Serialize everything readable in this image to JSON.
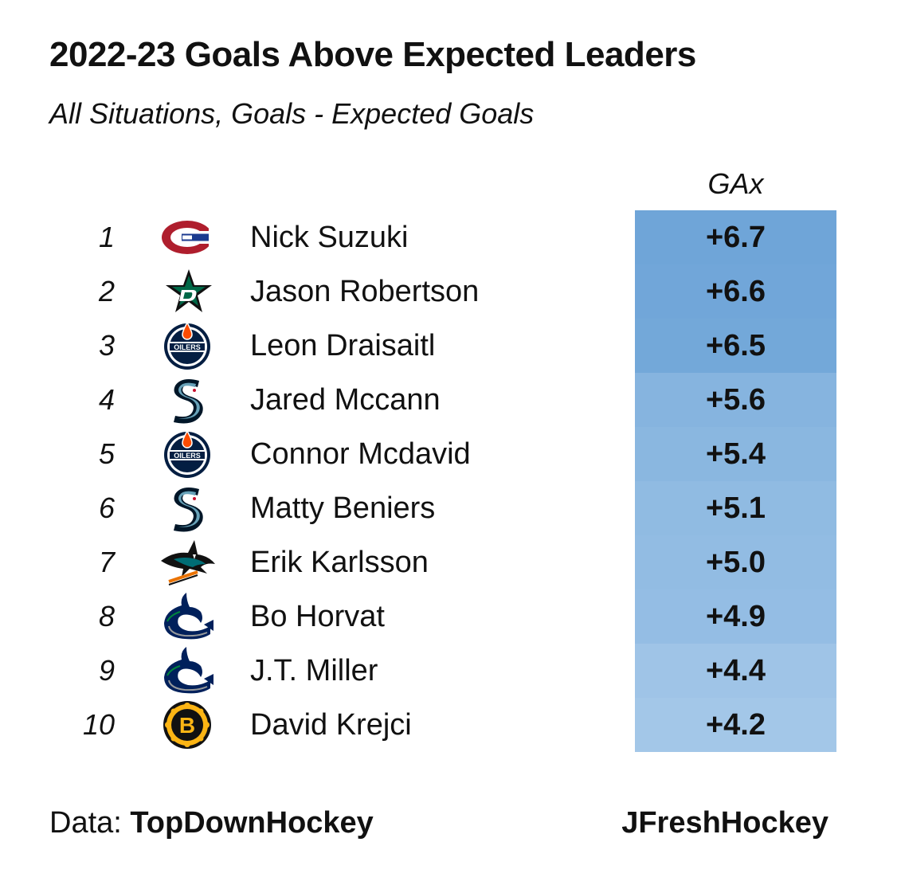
{
  "title": "2022-23 Goals Above Expected Leaders",
  "subtitle": "All Situations, Goals - Expected Goals",
  "column_header": "GAx",
  "footer": {
    "data_label": "Data:",
    "data_source": "TopDownHockey",
    "credit": "JFreshHockey"
  },
  "colors": {
    "cell_high": "#6fa5d8",
    "cell_low": "#a3c7e8"
  },
  "chart_data": {
    "type": "table",
    "title": "2022-23 Goals Above Expected Leaders",
    "subtitle": "All Situations, Goals - Expected Goals",
    "columns": [
      "",
      "",
      "",
      "GAx"
    ],
    "rows": [
      {
        "rank": "1",
        "logo": "canadiens-logo",
        "player": "Nick Suzuki",
        "display": "+6.7",
        "value": 6.7
      },
      {
        "rank": "2",
        "logo": "stars-logo",
        "player": "Jason Robertson",
        "display": "+6.6",
        "value": 6.6
      },
      {
        "rank": "3",
        "logo": "oilers-logo",
        "player": "Leon Draisaitl",
        "display": "+6.5",
        "value": 6.5
      },
      {
        "rank": "4",
        "logo": "kraken-logo",
        "player": "Jared Mccann",
        "display": "+5.6",
        "value": 5.6
      },
      {
        "rank": "5",
        "logo": "oilers-logo",
        "player": "Connor Mcdavid",
        "display": "+5.4",
        "value": 5.4
      },
      {
        "rank": "6",
        "logo": "kraken-logo",
        "player": "Matty Beniers",
        "display": "+5.1",
        "value": 5.1
      },
      {
        "rank": "7",
        "logo": "sharks-logo",
        "player": "Erik Karlsson",
        "display": "+5.0",
        "value": 5.0
      },
      {
        "rank": "8",
        "logo": "canucks-logo",
        "player": "Bo Horvat",
        "display": "+4.9",
        "value": 4.9
      },
      {
        "rank": "9",
        "logo": "canucks-logo",
        "player": "J.T. Miller",
        "display": "+4.4",
        "value": 4.4
      },
      {
        "rank": "10",
        "logo": "bruins-logo",
        "player": "David Krejci",
        "display": "+4.2",
        "value": 4.2
      }
    ]
  }
}
